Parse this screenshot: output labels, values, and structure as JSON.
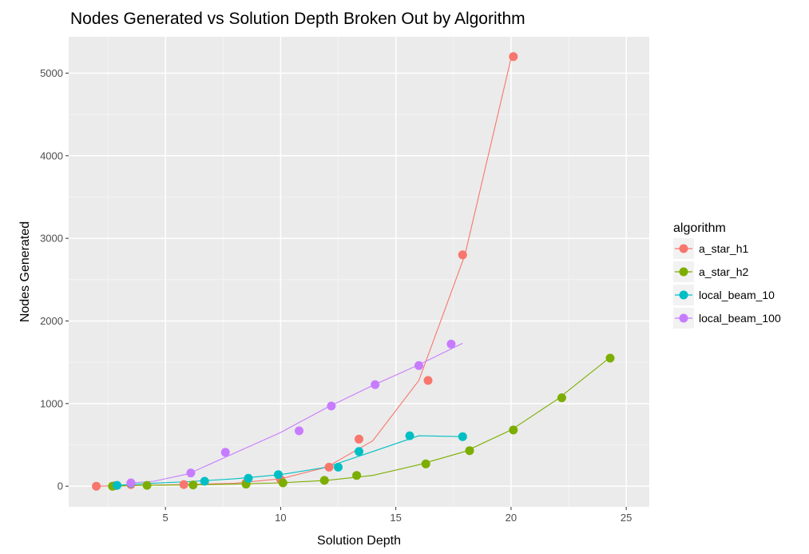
{
  "chart_data": {
    "type": "scatter",
    "title": "Nodes Generated vs Solution Depth Broken Out by Algorithm",
    "xlabel": "Solution Depth",
    "ylabel": "Nodes Generated",
    "xlim": [
      0.8,
      26.0
    ],
    "ylim": [
      -250,
      5440
    ],
    "xticks": [
      5,
      10,
      15,
      20,
      25
    ],
    "yticks": [
      0,
      1000,
      2000,
      3000,
      4000,
      5000
    ],
    "grid": true,
    "legend": {
      "title": "algorithm",
      "position": "right"
    },
    "series": [
      {
        "name": "a_star_h1",
        "color": "#F8766D",
        "points": [
          [
            2.0,
            0
          ],
          [
            2.8,
            5
          ],
          [
            3.5,
            20
          ],
          [
            5.8,
            20
          ],
          [
            8.5,
            40
          ],
          [
            10.0,
            80
          ],
          [
            12.1,
            230
          ],
          [
            13.4,
            570
          ],
          [
            16.4,
            1280
          ],
          [
            17.9,
            2800
          ],
          [
            20.1,
            5200
          ]
        ],
        "line": [
          [
            2.0,
            0
          ],
          [
            4.0,
            10
          ],
          [
            6.0,
            20
          ],
          [
            8.0,
            35
          ],
          [
            10.0,
            90
          ],
          [
            12.0,
            230
          ],
          [
            14.0,
            550
          ],
          [
            16.0,
            1280
          ],
          [
            18.0,
            2800
          ],
          [
            20.0,
            5180
          ]
        ]
      },
      {
        "name": "a_star_h2",
        "color": "#7CAE00",
        "points": [
          [
            2.7,
            0
          ],
          [
            4.2,
            10
          ],
          [
            6.2,
            15
          ],
          [
            8.5,
            25
          ],
          [
            10.1,
            40
          ],
          [
            11.9,
            70
          ],
          [
            13.3,
            130
          ],
          [
            16.3,
            270
          ],
          [
            18.2,
            430
          ],
          [
            20.1,
            680
          ],
          [
            22.2,
            1070
          ],
          [
            24.3,
            1550
          ]
        ],
        "line": [
          [
            2.7,
            0
          ],
          [
            4.0,
            10
          ],
          [
            6.0,
            15
          ],
          [
            8.0,
            25
          ],
          [
            10.0,
            40
          ],
          [
            12.0,
            70
          ],
          [
            14.0,
            130
          ],
          [
            16.0,
            260
          ],
          [
            18.0,
            420
          ],
          [
            20.0,
            680
          ],
          [
            22.0,
            1050
          ],
          [
            24.3,
            1560
          ]
        ]
      },
      {
        "name": "local_beam_10",
        "color": "#00BFC4",
        "points": [
          [
            2.9,
            10
          ],
          [
            3.5,
            35
          ],
          [
            6.7,
            60
          ],
          [
            8.6,
            95
          ],
          [
            9.9,
            140
          ],
          [
            12.5,
            230
          ],
          [
            13.4,
            420
          ],
          [
            15.6,
            610
          ],
          [
            17.9,
            600
          ]
        ],
        "line": [
          [
            2.9,
            10
          ],
          [
            4.0,
            30
          ],
          [
            6.0,
            55
          ],
          [
            8.0,
            90
          ],
          [
            10.0,
            140
          ],
          [
            12.0,
            230
          ],
          [
            14.0,
            420
          ],
          [
            16.0,
            610
          ],
          [
            17.9,
            600
          ]
        ]
      },
      {
        "name": "local_beam_100",
        "color": "#C77CFF",
        "points": [
          [
            3.5,
            40
          ],
          [
            6.1,
            160
          ],
          [
            7.6,
            410
          ],
          [
            10.8,
            670
          ],
          [
            12.2,
            970
          ],
          [
            14.1,
            1230
          ],
          [
            16.0,
            1460
          ],
          [
            17.4,
            1720
          ]
        ],
        "line": [
          [
            3.5,
            40
          ],
          [
            4.5,
            60
          ],
          [
            6.0,
            150
          ],
          [
            8.0,
            400
          ],
          [
            10.0,
            650
          ],
          [
            12.0,
            950
          ],
          [
            14.0,
            1220
          ],
          [
            16.0,
            1470
          ],
          [
            17.9,
            1730
          ]
        ]
      }
    ]
  }
}
